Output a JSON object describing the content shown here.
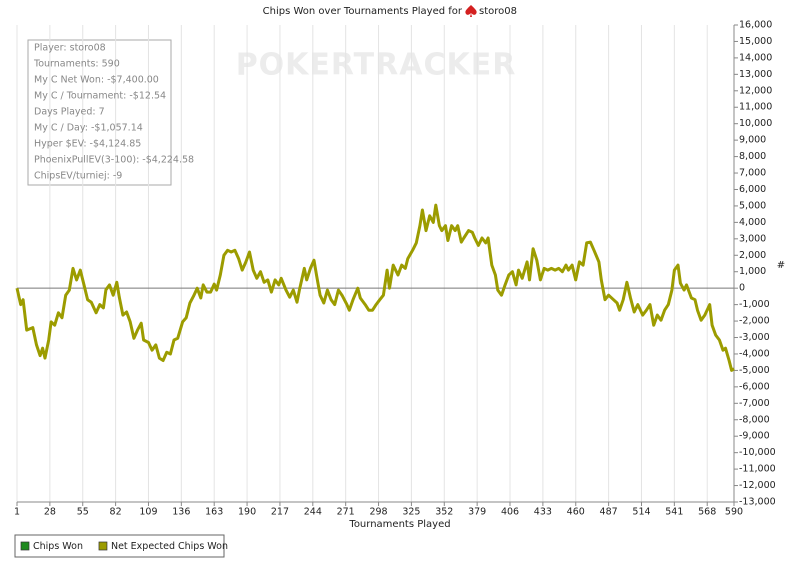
{
  "chart_data": {
    "type": "line",
    "title": "Chips Won over Tournaments Played for",
    "player": "storo08",
    "watermark": "POKERTRACKER",
    "xlabel": "Tournaments Played",
    "ylabel": "#",
    "annotations": [
      "Player: storo08",
      "Tournaments: 590",
      "My C Net Won: -$7,400.00",
      "My C / Tournament: -$12.54",
      "Days Played: 7",
      "My C / Day: -$1,057.14",
      "Hyper $EV: -$4,124.85",
      "PhoenixPullEV(3-100): -$4,224.58",
      "ChipsEV/turniej: -9"
    ],
    "grid": "x",
    "legend": "bottom-left",
    "xlim": [
      1,
      590
    ],
    "xticks": [
      1,
      28,
      55,
      82,
      109,
      136,
      163,
      190,
      217,
      244,
      271,
      298,
      325,
      352,
      379,
      406,
      433,
      460,
      487,
      514,
      541,
      568,
      590
    ],
    "ylim": [
      -13000,
      16000
    ],
    "yticks": [
      {
        "value": -13000,
        "label": "-13,000"
      },
      {
        "value": -12000,
        "label": "-12,000"
      },
      {
        "value": -11000,
        "label": "-11,000"
      },
      {
        "value": -10000,
        "label": "-10,000"
      },
      {
        "value": -9000,
        "label": "-9,000"
      },
      {
        "value": -8000,
        "label": "-8,000"
      },
      {
        "value": -7000,
        "label": "-7,000"
      },
      {
        "value": -6000,
        "label": "-6,000"
      },
      {
        "value": -5000,
        "label": "-5,000"
      },
      {
        "value": -4000,
        "label": "-4,000"
      },
      {
        "value": -3000,
        "label": "-3,000"
      },
      {
        "value": -2000,
        "label": "-2,000"
      },
      {
        "value": -1000,
        "label": "-1,000"
      },
      0,
      {
        "value": 1000,
        "label": "1,000"
      },
      {
        "value": 2000,
        "label": "2,000"
      },
      {
        "value": 3000,
        "label": "3,000"
      },
      {
        "value": 4000,
        "label": "4,000"
      },
      {
        "value": 5000,
        "label": "5,000"
      },
      {
        "value": 6000,
        "label": "6,000"
      },
      {
        "value": 7000,
        "label": "7,000"
      },
      {
        "value": 8000,
        "label": "8,000"
      },
      {
        "value": 9000,
        "label": "9,000"
      },
      {
        "value": 10000,
        "label": "10,000"
      },
      {
        "value": 11000,
        "label": "11,000"
      },
      {
        "value": 12000,
        "label": "12,000"
      },
      {
        "value": 13000,
        "label": "13,000"
      },
      {
        "value": 14000,
        "label": "14,000"
      },
      {
        "value": 15000,
        "label": "15,000"
      },
      {
        "value": 16000,
        "label": "16,000"
      }
    ],
    "x": [
      1,
      4,
      6,
      9,
      14,
      17,
      20,
      22,
      24,
      27,
      29,
      32,
      35,
      38,
      41,
      44,
      47,
      50,
      53,
      56,
      59,
      62,
      66,
      69,
      72,
      74,
      77,
      80,
      83,
      85,
      88,
      91,
      94,
      97,
      100,
      103,
      105,
      109,
      112,
      115,
      118,
      121,
      124,
      127,
      130,
      133,
      137,
      140,
      143,
      146,
      149,
      152,
      154,
      157,
      160,
      163,
      165,
      168,
      171,
      174,
      177,
      180,
      183,
      186,
      189,
      192,
      195,
      198,
      201,
      204,
      207,
      210,
      213,
      216,
      218,
      222,
      225,
      228,
      231,
      233,
      237,
      239,
      242,
      245,
      247,
      250,
      253,
      256,
      259,
      262,
      265,
      268,
      272,
      274,
      277,
      281,
      283,
      287,
      290,
      293,
      296,
      299,
      302,
      305,
      307,
      310,
      314,
      317,
      320,
      322,
      326,
      329,
      332,
      334,
      337,
      340,
      343,
      345,
      348,
      350,
      353,
      355,
      358,
      361,
      363,
      366,
      368,
      372,
      375,
      377,
      380,
      383,
      386,
      388,
      391,
      394,
      396,
      399,
      402,
      405,
      408,
      411,
      413,
      416,
      420,
      422,
      425,
      428,
      431,
      434,
      437,
      440,
      443,
      446,
      449,
      452,
      454,
      457,
      460,
      463,
      466,
      469,
      472,
      475,
      479,
      481,
      484,
      487,
      491,
      494,
      496,
      499,
      502,
      505,
      508,
      511,
      515,
      518,
      521,
      524,
      527,
      530,
      533,
      536,
      539,
      541,
      544,
      546,
      549,
      551,
      555,
      558,
      560,
      563,
      566,
      570,
      572,
      575,
      578,
      581,
      583,
      586,
      588,
      590
    ],
    "series": [
      {
        "name": "Chips Won",
        "color": "#1f8a1f"
      },
      {
        "name": "Net Expected Chips Won",
        "color": "#9c9c00",
        "values": [
          0,
          -1000,
          -700,
          -2550,
          -2400,
          -3450,
          -4100,
          -3650,
          -4250,
          -3150,
          -2050,
          -2250,
          -1500,
          -1800,
          -430,
          -120,
          1200,
          500,
          1100,
          200,
          -700,
          -850,
          -1500,
          -1000,
          -1200,
          -100,
          200,
          -430,
          360,
          -550,
          -1640,
          -1450,
          -2050,
          -3050,
          -2550,
          -2130,
          -3150,
          -3300,
          -3770,
          -3450,
          -4250,
          -4400,
          -3900,
          -4000,
          -3150,
          -3050,
          -2050,
          -1800,
          -900,
          -490,
          0,
          -600,
          200,
          -240,
          -240,
          250,
          -120,
          800,
          2000,
          2300,
          2200,
          2300,
          1800,
          1100,
          1600,
          2200,
          1100,
          600,
          1000,
          360,
          500,
          -240,
          500,
          200,
          600,
          -120,
          -550,
          -120,
          -850,
          -120,
          1200,
          500,
          1200,
          1700,
          800,
          -430,
          -900,
          -120,
          -700,
          -1000,
          -120,
          -430,
          -1000,
          -1340,
          -700,
          0,
          -600,
          -1000,
          -1340,
          -1340,
          -1000,
          -700,
          -430,
          1100,
          0,
          1400,
          800,
          1400,
          1200,
          1800,
          2300,
          2750,
          3800,
          4750,
          3500,
          4400,
          4000,
          5050,
          3800,
          3500,
          3800,
          2900,
          3800,
          3500,
          3800,
          2800,
          3050,
          3500,
          3400,
          3050,
          2600,
          3050,
          2750,
          3050,
          1400,
          800,
          -120,
          -430,
          200,
          800,
          1000,
          200,
          1100,
          600,
          1600,
          500,
          2400,
          1700,
          500,
          1200,
          1100,
          1200,
          1100,
          1200,
          1000,
          1400,
          1100,
          1400,
          500,
          1600,
          1400,
          2750,
          2800,
          2300,
          1600,
          500,
          -700,
          -430,
          -700,
          -900,
          -1340,
          -700,
          360,
          -600,
          -1450,
          -1000,
          -1640,
          -1340,
          -1000,
          -2250,
          -1640,
          -1950,
          -1340,
          -1000,
          -120,
          1100,
          1400,
          300,
          -120,
          200,
          -600,
          -700,
          -1340,
          -1950,
          -1640,
          -1000,
          -2250,
          -2850,
          -3150,
          -3770,
          -3650,
          -4400,
          -5000,
          -4900
        ]
      }
    ]
  }
}
